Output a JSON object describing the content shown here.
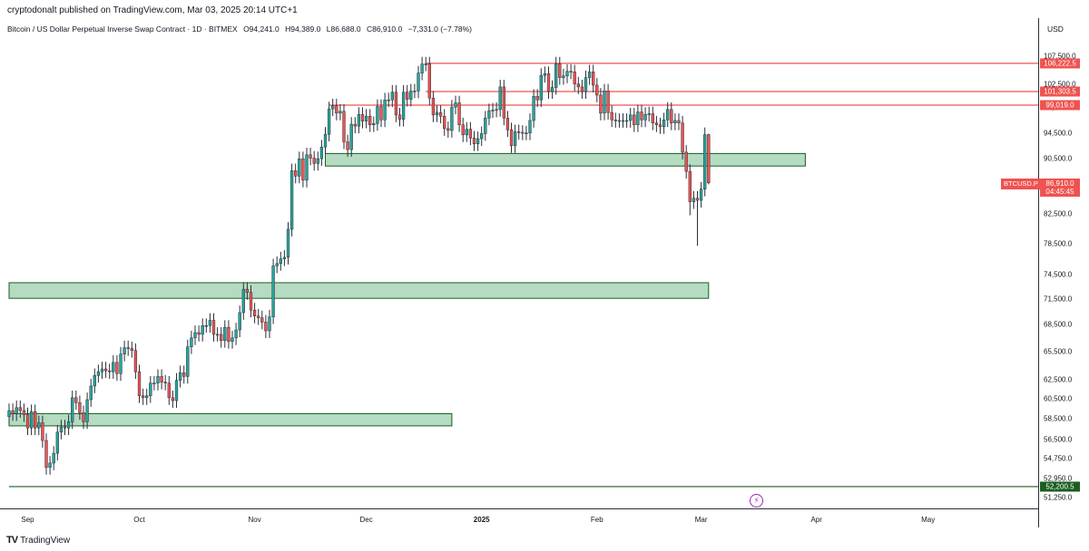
{
  "publisher_line": "cryptodonalt published on TradingView.com, Mar 03, 2025 20:14 UTC+1",
  "legend": {
    "symbol": "Bitcoin / US Dollar Perpetual Inverse Swap Contract · 1D · BITMEX",
    "open": "O94,241.0",
    "high": "H94,389.0",
    "low": "L86,688.0",
    "close": "C86,910.0",
    "change": "−7,331.0 (−7.78%)"
  },
  "currency": "USD",
  "branding": "TradingView",
  "colors": {
    "up": "#26a69a",
    "down": "#ef5350",
    "zone_fill": "#9ccfae",
    "zone_border": "#1b5e20",
    "resistance": "#ef5350",
    "support_line": "#1b5e20"
  },
  "chart_data": {
    "type": "candlestick",
    "title": "Bitcoin / US Dollar Perpetual Inverse Swap Contract",
    "interval": "1D",
    "exchange": "BITMEX",
    "ticker": "BTCUSD.P",
    "x_range": [
      "2024-08-27",
      "2025-05-31"
    ],
    "ylim": [
      50000,
      112000
    ],
    "y_scale": "log",
    "grid": false,
    "price_ticks": [
      107500,
      102500,
      98500,
      94500,
      90500,
      86500,
      82500,
      78500,
      74500,
      71500,
      68500,
      65500,
      62500,
      60500,
      58500,
      56500,
      54750,
      52950,
      51250
    ],
    "price_tick_labels": [
      "107,500.0",
      "102,500.0",
      "98,500.0",
      "94,500.0",
      "90,500.0",
      "86,500.0",
      "82,500.0",
      "78,500.0",
      "74,500.0",
      "71,500.0",
      "68,500.0",
      "65,500.0",
      "62,500.0",
      "60,500.0",
      "58,500.0",
      "56,500.0",
      "54,750.0",
      "52,950.0",
      "51,250.0"
    ],
    "time_ticks": [
      {
        "label": "Sep",
        "date": "2024-09-01"
      },
      {
        "label": "Oct",
        "date": "2024-10-01"
      },
      {
        "label": "Nov",
        "date": "2024-11-01"
      },
      {
        "label": "Dec",
        "date": "2024-12-01"
      },
      {
        "label": "2025",
        "date": "2025-01-01",
        "bold": true
      },
      {
        "label": "Feb",
        "date": "2025-02-01"
      },
      {
        "label": "Mar",
        "date": "2025-03-01"
      },
      {
        "label": "Apr",
        "date": "2025-04-01"
      },
      {
        "label": "May",
        "date": "2025-05-01"
      }
    ],
    "current_price": {
      "value": 86910.0,
      "label": "86,910.0",
      "countdown": "04:45:45"
    },
    "horizontal_levels": [
      {
        "value": 106222.5,
        "label": "106,222.5",
        "color": "#ef5350",
        "from": "2024-12-17"
      },
      {
        "value": 101303.5,
        "label": "101,303.5",
        "color": "#ef5350",
        "from": "2024-12-17"
      },
      {
        "value": 99019.0,
        "label": "99,019.0",
        "color": "#ef5350",
        "from": "2024-11-21"
      },
      {
        "value": 52200.5,
        "label": "52,200.5",
        "color": "#1b5e20",
        "from": "2024-08-27"
      }
    ],
    "zones": [
      {
        "low": 89400,
        "high": 91300,
        "from": "2024-11-20",
        "to": "2025-03-29"
      },
      {
        "low": 71600,
        "high": 73500,
        "from": "2024-08-27",
        "to": "2025-03-03"
      },
      {
        "low": 57800,
        "high": 59000,
        "from": "2024-08-27",
        "to": "2024-12-24"
      }
    ],
    "closes": [
      [
        "2024-08-27",
        59300
      ],
      [
        "2024-08-28",
        59000
      ],
      [
        "2024-08-29",
        59600
      ],
      [
        "2024-08-30",
        59300
      ],
      [
        "2024-08-31",
        58900
      ],
      [
        "2024-09-01",
        57600
      ],
      [
        "2024-09-02",
        59200
      ],
      [
        "2024-09-03",
        57600
      ],
      [
        "2024-09-04",
        58100
      ],
      [
        "2024-09-05",
        56400
      ],
      [
        "2024-09-06",
        53900
      ],
      [
        "2024-09-07",
        54300
      ],
      [
        "2024-09-08",
        55200
      ],
      [
        "2024-09-09",
        57200
      ],
      [
        "2024-09-10",
        57700
      ],
      [
        "2024-09-11",
        57600
      ],
      [
        "2024-09-12",
        58200
      ],
      [
        "2024-09-13",
        60600
      ],
      [
        "2024-09-14",
        60100
      ],
      [
        "2024-09-15",
        59100
      ],
      [
        "2024-09-16",
        58200
      ],
      [
        "2024-09-17",
        60400
      ],
      [
        "2024-09-18",
        61800
      ],
      [
        "2024-09-19",
        62900
      ],
      [
        "2024-09-20",
        63300
      ],
      [
        "2024-09-21",
        63600
      ],
      [
        "2024-09-22",
        63400
      ],
      [
        "2024-09-23",
        63300
      ],
      [
        "2024-09-24",
        64300
      ],
      [
        "2024-09-25",
        63100
      ],
      [
        "2024-09-26",
        65200
      ],
      [
        "2024-09-27",
        65900
      ],
      [
        "2024-09-28",
        65800
      ],
      [
        "2024-09-29",
        65600
      ],
      [
        "2024-09-30",
        63300
      ],
      [
        "2024-10-01",
        60800
      ],
      [
        "2024-10-02",
        60600
      ],
      [
        "2024-10-03",
        60800
      ],
      [
        "2024-10-04",
        62100
      ],
      [
        "2024-10-05",
        62100
      ],
      [
        "2024-10-06",
        62800
      ],
      [
        "2024-10-07",
        62200
      ],
      [
        "2024-10-08",
        62100
      ],
      [
        "2024-10-09",
        60600
      ],
      [
        "2024-10-10",
        60300
      ],
      [
        "2024-10-11",
        62400
      ],
      [
        "2024-10-12",
        63200
      ],
      [
        "2024-10-13",
        62800
      ],
      [
        "2024-10-14",
        66000
      ],
      [
        "2024-10-15",
        67000
      ],
      [
        "2024-10-16",
        67600
      ],
      [
        "2024-10-17",
        67400
      ],
      [
        "2024-10-18",
        68400
      ],
      [
        "2024-10-19",
        68400
      ],
      [
        "2024-10-20",
        69000
      ],
      [
        "2024-10-21",
        67400
      ],
      [
        "2024-10-22",
        67400
      ],
      [
        "2024-10-23",
        66700
      ],
      [
        "2024-10-24",
        68200
      ],
      [
        "2024-10-25",
        66600
      ],
      [
        "2024-10-26",
        67000
      ],
      [
        "2024-10-27",
        67900
      ],
      [
        "2024-10-28",
        69900
      ],
      [
        "2024-10-29",
        72700
      ],
      [
        "2024-10-30",
        72300
      ],
      [
        "2024-10-31",
        70200
      ],
      [
        "2024-11-01",
        69500
      ],
      [
        "2024-11-02",
        69300
      ],
      [
        "2024-11-03",
        68800
      ],
      [
        "2024-11-04",
        67800
      ],
      [
        "2024-11-05",
        69400
      ],
      [
        "2024-11-06",
        75600
      ],
      [
        "2024-11-07",
        75900
      ],
      [
        "2024-11-08",
        76500
      ],
      [
        "2024-11-09",
        76700
      ],
      [
        "2024-11-10",
        80400
      ],
      [
        "2024-11-11",
        88700
      ],
      [
        "2024-11-12",
        87900
      ],
      [
        "2024-11-13",
        90500
      ],
      [
        "2024-11-14",
        87300
      ],
      [
        "2024-11-15",
        91100
      ],
      [
        "2024-11-16",
        90600
      ],
      [
        "2024-11-17",
        89800
      ],
      [
        "2024-11-18",
        90500
      ],
      [
        "2024-11-19",
        92300
      ],
      [
        "2024-11-20",
        94300
      ],
      [
        "2024-11-21",
        98400
      ],
      [
        "2024-11-22",
        98900
      ],
      [
        "2024-11-23",
        97700
      ],
      [
        "2024-11-24",
        98000
      ],
      [
        "2024-11-25",
        93100
      ],
      [
        "2024-11-26",
        91900
      ],
      [
        "2024-11-27",
        95900
      ],
      [
        "2024-11-28",
        95600
      ],
      [
        "2024-11-29",
        97500
      ],
      [
        "2024-11-30",
        96400
      ],
      [
        "2024-12-01",
        97200
      ],
      [
        "2024-12-02",
        95800
      ],
      [
        "2024-12-03",
        96000
      ],
      [
        "2024-12-04",
        98800
      ],
      [
        "2024-12-05",
        96600
      ],
      [
        "2024-12-06",
        99900
      ],
      [
        "2024-12-07",
        99900
      ],
      [
        "2024-12-08",
        101200
      ],
      [
        "2024-12-09",
        97400
      ],
      [
        "2024-12-10",
        96700
      ],
      [
        "2024-12-11",
        101200
      ],
      [
        "2024-12-12",
        100000
      ],
      [
        "2024-12-13",
        101400
      ],
      [
        "2024-12-14",
        101400
      ],
      [
        "2024-12-15",
        104500
      ],
      [
        "2024-12-16",
        106100
      ],
      [
        "2024-12-17",
        106100
      ],
      [
        "2024-12-18",
        100200
      ],
      [
        "2024-12-19",
        97400
      ],
      [
        "2024-12-20",
        97800
      ],
      [
        "2024-12-21",
        97200
      ],
      [
        "2024-12-22",
        95200
      ],
      [
        "2024-12-23",
        94900
      ],
      [
        "2024-12-24",
        98700
      ],
      [
        "2024-12-25",
        99400
      ],
      [
        "2024-12-26",
        95800
      ],
      [
        "2024-12-27",
        94200
      ],
      [
        "2024-12-28",
        95100
      ],
      [
        "2024-12-29",
        93700
      ],
      [
        "2024-12-30",
        92800
      ],
      [
        "2024-12-31",
        93600
      ],
      [
        "2025-01-01",
        94400
      ],
      [
        "2025-01-02",
        96900
      ],
      [
        "2025-01-03",
        98100
      ],
      [
        "2025-01-04",
        98200
      ],
      [
        "2025-01-05",
        98300
      ],
      [
        "2025-01-06",
        102100
      ],
      [
        "2025-01-07",
        96900
      ],
      [
        "2025-01-08",
        95000
      ],
      [
        "2025-01-09",
        92500
      ],
      [
        "2025-01-10",
        94700
      ],
      [
        "2025-01-11",
        94600
      ],
      [
        "2025-01-12",
        94500
      ],
      [
        "2025-01-13",
        94500
      ],
      [
        "2025-01-14",
        96500
      ],
      [
        "2025-01-15",
        100500
      ],
      [
        "2025-01-16",
        99900
      ],
      [
        "2025-01-17",
        104100
      ],
      [
        "2025-01-18",
        104400
      ],
      [
        "2025-01-19",
        101300
      ],
      [
        "2025-01-20",
        102000
      ],
      [
        "2025-01-21",
        106100
      ],
      [
        "2025-01-22",
        103700
      ],
      [
        "2025-01-23",
        104000
      ],
      [
        "2025-01-24",
        104800
      ],
      [
        "2025-01-25",
        104700
      ],
      [
        "2025-01-26",
        102600
      ],
      [
        "2025-01-27",
        102100
      ],
      [
        "2025-01-28",
        101300
      ],
      [
        "2025-01-29",
        103700
      ],
      [
        "2025-01-30",
        104700
      ],
      [
        "2025-01-31",
        102400
      ],
      [
        "2025-02-01",
        100700
      ],
      [
        "2025-02-02",
        97700
      ],
      [
        "2025-02-03",
        101400
      ],
      [
        "2025-02-04",
        97800
      ],
      [
        "2025-02-05",
        96600
      ],
      [
        "2025-02-06",
        96500
      ],
      [
        "2025-02-07",
        96500
      ],
      [
        "2025-02-08",
        96500
      ],
      [
        "2025-02-09",
        96500
      ],
      [
        "2025-02-10",
        97400
      ],
      [
        "2025-02-11",
        95800
      ],
      [
        "2025-02-12",
        97900
      ],
      [
        "2025-02-13",
        96600
      ],
      [
        "2025-02-14",
        97500
      ],
      [
        "2025-02-15",
        97600
      ],
      [
        "2025-02-16",
        96100
      ],
      [
        "2025-02-17",
        95800
      ],
      [
        "2025-02-18",
        95500
      ],
      [
        "2025-02-19",
        96600
      ],
      [
        "2025-02-20",
        98300
      ],
      [
        "2025-02-21",
        96100
      ],
      [
        "2025-02-22",
        96500
      ],
      [
        "2025-02-23",
        96100
      ],
      [
        "2025-02-24",
        91500
      ],
      [
        "2025-02-25",
        88600
      ],
      [
        "2025-02-26",
        84200
      ],
      [
        "2025-02-27",
        84700
      ],
      [
        "2025-02-28",
        84400
      ],
      [
        "2025-03-01",
        86000
      ],
      [
        "2025-03-02",
        94241
      ],
      [
        "2025-03-03",
        86910
      ]
    ]
  }
}
